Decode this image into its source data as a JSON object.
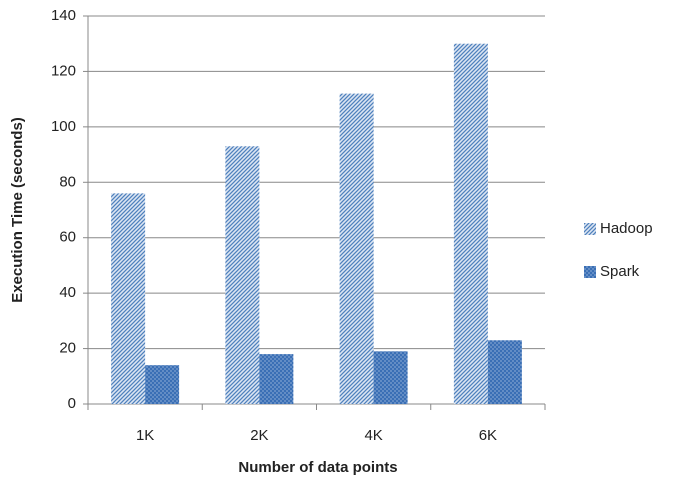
{
  "chart_data": {
    "type": "bar",
    "x_label": "Number of data points",
    "y_label": "Execution Time (seconds)",
    "categories": [
      "1K",
      "2K",
      "4K",
      "6K"
    ],
    "series": [
      {
        "name": "Hadoop",
        "color": "#4f81bd",
        "values": [
          76,
          93,
          112,
          130
        ]
      },
      {
        "name": "Spark",
        "color": "#3a6fb5",
        "values": [
          14,
          18,
          19,
          23
        ]
      }
    ],
    "ylim": [
      0,
      140
    ],
    "yticks": [
      0,
      20,
      40,
      60,
      80,
      100,
      120,
      140
    ],
    "grid": true,
    "legend": "right"
  }
}
